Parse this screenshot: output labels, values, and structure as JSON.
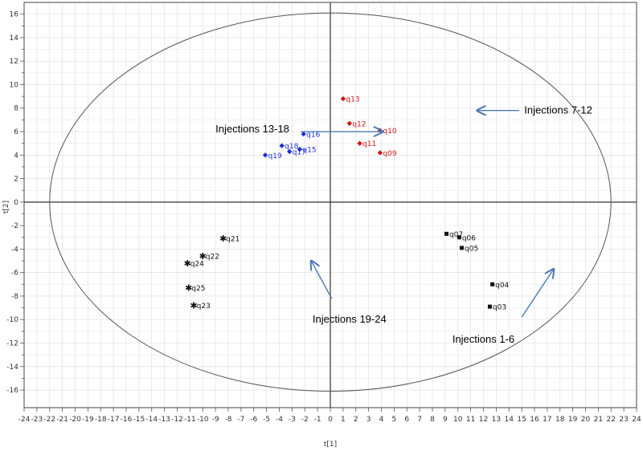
{
  "chart_data": {
    "type": "scatter",
    "title": "",
    "xlabel": "t[1]",
    "ylabel": "t[2]",
    "xlim": [
      -24,
      24
    ],
    "ylim": [
      -17.5,
      17
    ],
    "xticks": [
      -24,
      -23,
      -22,
      -21,
      -20,
      -19,
      -18,
      -17,
      -16,
      -15,
      -14,
      -13,
      -12,
      -11,
      -10,
      -9,
      -8,
      -7,
      -6,
      -5,
      -4,
      -3,
      -2,
      -1,
      0,
      1,
      2,
      3,
      4,
      5,
      6,
      7,
      8,
      9,
      10,
      11,
      12,
      13,
      14,
      15,
      16,
      17,
      18,
      19,
      20,
      21,
      22,
      23,
      24
    ],
    "yticks": [
      16,
      14,
      12,
      10,
      8,
      6,
      4,
      2,
      0,
      -2,
      -4,
      -6,
      -8,
      -10,
      -12,
      -14,
      -16
    ],
    "grid": true,
    "ellipse": {
      "cx": 0,
      "cy": 0,
      "rx": 22,
      "ry": 16.1
    },
    "series": [
      {
        "color": "#d11414",
        "marker": "diamond",
        "points": [
          {
            "label": "q09",
            "x": 3.9,
            "y": 4.2
          },
          {
            "label": "q10",
            "x": 3.9,
            "y": 6.1
          },
          {
            "label": "q11",
            "x": 2.3,
            "y": 5.0
          },
          {
            "label": "q12",
            "x": 1.5,
            "y": 6.7
          },
          {
            "label": "q13",
            "x": 1.0,
            "y": 8.8
          }
        ]
      },
      {
        "color": "#1c2fd6",
        "marker": "diamond",
        "points": [
          {
            "label": "q15",
            "x": -2.4,
            "y": 4.5
          },
          {
            "label": "q16",
            "x": -2.1,
            "y": 5.8
          },
          {
            "label": "q17",
            "x": -3.2,
            "y": 4.3
          },
          {
            "label": "q18",
            "x": -3.8,
            "y": 4.8
          },
          {
            "label": "q19",
            "x": -5.1,
            "y": 4.0
          }
        ]
      },
      {
        "color": "#111111",
        "marker": "square",
        "points": [
          {
            "label": "q03",
            "x": 12.5,
            "y": -8.9
          },
          {
            "label": "q04",
            "x": 12.7,
            "y": -7.0
          },
          {
            "label": "q05",
            "x": 10.3,
            "y": -3.9
          },
          {
            "label": "q06",
            "x": 10.1,
            "y": -3.0
          },
          {
            "label": "q07",
            "x": 9.1,
            "y": -2.7
          }
        ]
      },
      {
        "color": "#111111",
        "marker": "star",
        "points": [
          {
            "label": "q21",
            "x": -8.4,
            "y": -3.1
          },
          {
            "label": "q22",
            "x": -10.0,
            "y": -4.6
          },
          {
            "label": "q23",
            "x": -10.7,
            "y": -8.8
          },
          {
            "label": "q24",
            "x": -11.2,
            "y": -5.2
          },
          {
            "label": "q25",
            "x": -11.1,
            "y": -7.3
          }
        ]
      }
    ],
    "annotations": [
      {
        "text": "Injections 7-12",
        "text_x": 15.2,
        "text_y": 7.8,
        "anchor": "start",
        "arrow_from": [
          14.8,
          7.8
        ],
        "arrow_to": [
          11.5,
          7.8
        ]
      },
      {
        "text": "Injections 13-18",
        "text_x": -9.0,
        "text_y": 6.2,
        "anchor": "start",
        "arrow_from": [
          -2.3,
          6.0
        ],
        "arrow_to": [
          4.1,
          6.0
        ]
      },
      {
        "text": "Injections 19-24",
        "text_x": 1.5,
        "text_y": -10.0,
        "anchor": "middle",
        "arrow_from": [
          0.1,
          -8.2
        ],
        "arrow_to": [
          -1.5,
          -5.0
        ]
      },
      {
        "text": "Injections 1-6",
        "text_x": 12.0,
        "text_y": -11.7,
        "anchor": "middle",
        "arrow_from": [
          15.0,
          -9.8
        ],
        "arrow_to": [
          17.5,
          -5.7
        ]
      }
    ],
    "colors": {
      "ellipse": "#555555",
      "grid": "#dddddd",
      "axis": "#333333",
      "arrow": "#4a7ab5"
    }
  }
}
